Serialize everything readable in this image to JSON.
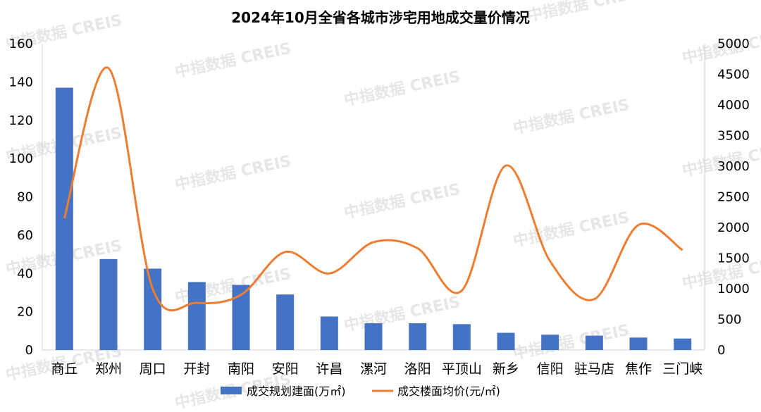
{
  "watermark_text": "中指数据 CREIS",
  "chart_data": {
    "type": "bar",
    "title": "2024年10月全省各城市涉宅用地成交量价情况",
    "categories": [
      "商丘",
      "郑州",
      "周口",
      "开封",
      "南阳",
      "安阳",
      "许昌",
      "漯河",
      "洛阳",
      "平顶山",
      "新乡",
      "信阳",
      "驻马店",
      "焦作",
      "三门峡"
    ],
    "series": [
      {
        "name": "成交规划建面(万㎡)",
        "type": "bar",
        "axis": "left",
        "color": "#4472C4",
        "values": [
          137,
          47.5,
          42.5,
          35.5,
          34,
          29,
          17.5,
          14,
          14,
          13.5,
          9,
          8,
          7.5,
          6.5,
          6
        ]
      },
      {
        "name": "成交楼面均价(元/㎡)",
        "type": "line",
        "axis": "right",
        "smooth": true,
        "color": "#ED7D31",
        "values": [
          2150,
          4600,
          1000,
          770,
          900,
          1600,
          1250,
          1760,
          1660,
          970,
          3010,
          1450,
          830,
          2040,
          1630
        ]
      }
    ],
    "y_left": {
      "min": 0,
      "max": 160,
      "ticks": [
        "0",
        "20",
        "40",
        "60",
        "80",
        "100",
        "120",
        "140",
        "160"
      ]
    },
    "y_right": {
      "min": 0,
      "max": 5000,
      "ticks": [
        "0",
        "500",
        "1000",
        "1500",
        "2000",
        "2500",
        "3000",
        "3500",
        "4000",
        "4500",
        "5000"
      ]
    },
    "legend_position": "bottom",
    "grid": false
  }
}
